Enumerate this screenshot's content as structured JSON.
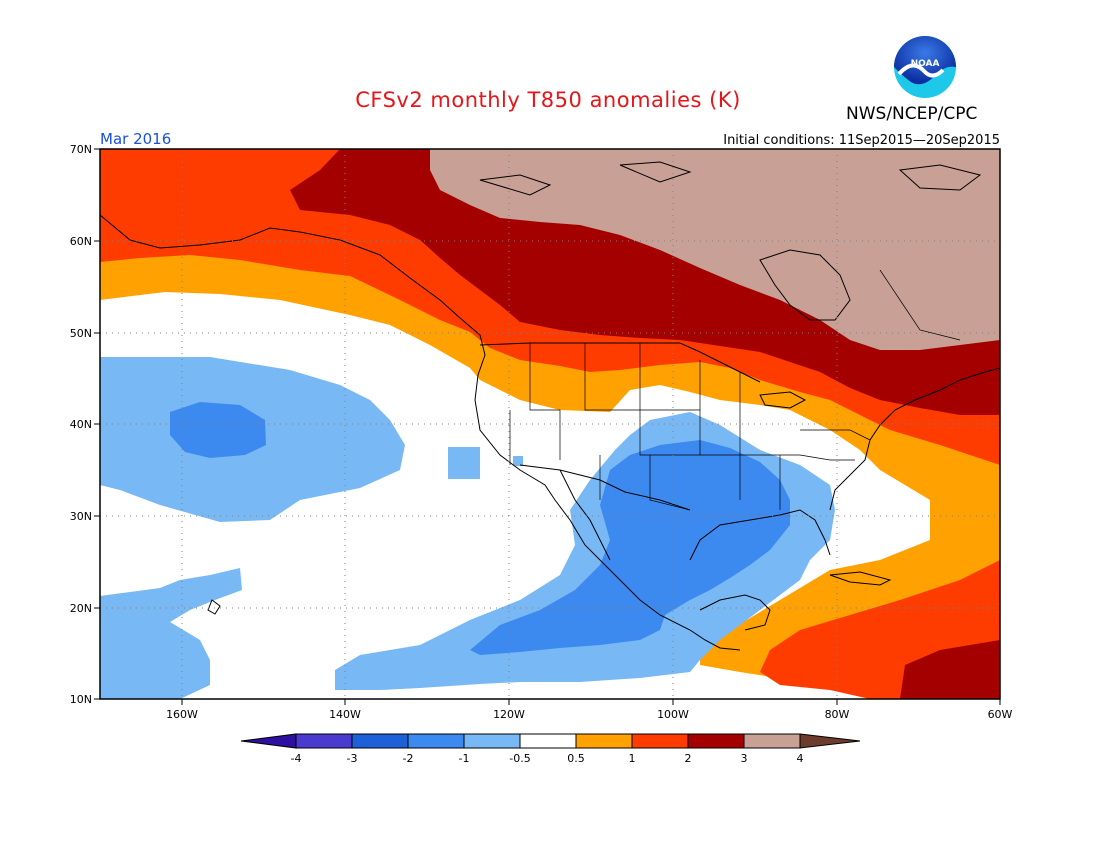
{
  "header": {
    "title": "CFSv2 monthly T850 anomalies (K)",
    "agency": "NWS/NCEP/CPC",
    "logo_text": "NOAA",
    "period": "Mar 2016",
    "initial_conditions": "Initial conditions: 11Sep2015—20Sep2015"
  },
  "map": {
    "lat_labels": [
      "70N",
      "60N",
      "50N",
      "40N",
      "30N",
      "20N",
      "10N"
    ],
    "lon_labels": [
      "160W",
      "140W",
      "120W",
      "100W",
      "80W",
      "60W"
    ],
    "lat_range": [
      10,
      70
    ],
    "lon_range": [
      -170,
      -60
    ]
  },
  "legend": {
    "colors": [
      "#2e10a0",
      "#4a3ad0",
      "#1e60d8",
      "#3c8af0",
      "#78b8f5",
      "#ffffff",
      "#ffa100",
      "#ff3c00",
      "#a50000",
      "#c8a096",
      "#6c3c2c"
    ],
    "labels": [
      "-4",
      "-3",
      "-2",
      "-1",
      "-0.5",
      "0.5",
      "1",
      "2",
      "3",
      "4"
    ]
  }
}
